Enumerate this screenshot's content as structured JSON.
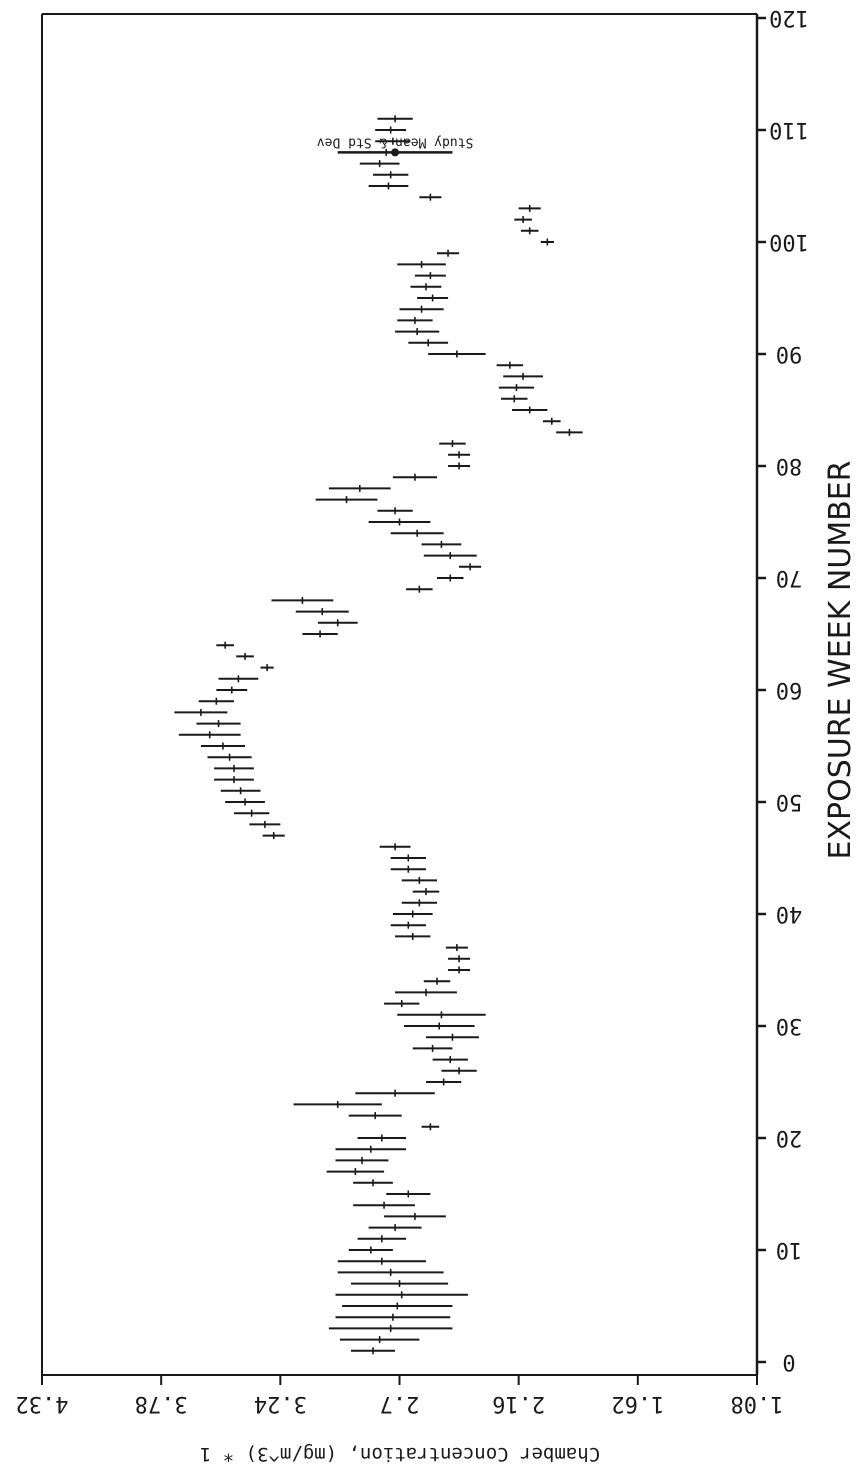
{
  "chart_data": {
    "type": "errorbar",
    "orientation": "rotated-180",
    "xlabel": "EXPOSURE WEEK NUMBER",
    "ylabel": "Chamber Concentration, (mg/m^3) * 1",
    "x_ticks": [
      "0",
      "10",
      "20",
      "30",
      "40",
      "50",
      "60",
      "70",
      "80",
      "90",
      "100",
      "110",
      "120"
    ],
    "y_ticks": [
      "1.08",
      "1.62",
      "2.16",
      "2.7",
      "3.24",
      "3.78",
      "4.32"
    ],
    "xlim": [
      0,
      120
    ],
    "ylim": [
      1.08,
      4.32
    ],
    "annotation": "Study Mean & Std Dev",
    "study_mean": {
      "x": 108,
      "mean": 2.72,
      "sd": 0.26
    },
    "series": [
      {
        "points": [
          {
            "x": 1,
            "mean": 2.82,
            "sd": 0.1
          },
          {
            "x": 2,
            "mean": 2.79,
            "sd": 0.18
          },
          {
            "x": 3,
            "mean": 2.74,
            "sd": 0.28
          },
          {
            "x": 4,
            "mean": 2.73,
            "sd": 0.26
          },
          {
            "x": 5,
            "mean": 2.71,
            "sd": 0.25
          },
          {
            "x": 6,
            "mean": 2.69,
            "sd": 0.3
          },
          {
            "x": 7,
            "mean": 2.7,
            "sd": 0.22
          },
          {
            "x": 8,
            "mean": 2.74,
            "sd": 0.24
          },
          {
            "x": 9,
            "mean": 2.78,
            "sd": 0.2
          },
          {
            "x": 10,
            "mean": 2.83,
            "sd": 0.1
          },
          {
            "x": 11,
            "mean": 2.78,
            "sd": 0.11
          },
          {
            "x": 12,
            "mean": 2.72,
            "sd": 0.12
          },
          {
            "x": 13,
            "mean": 2.63,
            "sd": 0.14
          },
          {
            "x": 14,
            "mean": 2.77,
            "sd": 0.14
          },
          {
            "x": 15,
            "mean": 2.66,
            "sd": 0.1
          },
          {
            "x": 16,
            "mean": 2.82,
            "sd": 0.09
          },
          {
            "x": 17,
            "mean": 2.9,
            "sd": 0.13
          },
          {
            "x": 18,
            "mean": 2.87,
            "sd": 0.12
          },
          {
            "x": 19,
            "mean": 2.83,
            "sd": 0.16
          },
          {
            "x": 20,
            "mean": 2.78,
            "sd": 0.11
          },
          {
            "x": 21,
            "mean": 2.56,
            "sd": 0.04
          },
          {
            "x": 22,
            "mean": 2.81,
            "sd": 0.12
          },
          {
            "x": 23,
            "mean": 2.98,
            "sd": 0.2
          },
          {
            "x": 24,
            "mean": 2.72,
            "sd": 0.18
          },
          {
            "x": 25,
            "mean": 2.5,
            "sd": 0.08
          },
          {
            "x": 26,
            "mean": 2.43,
            "sd": 0.08
          },
          {
            "x": 27,
            "mean": 2.47,
            "sd": 0.08
          },
          {
            "x": 28,
            "mean": 2.55,
            "sd": 0.09
          },
          {
            "x": 29,
            "mean": 2.46,
            "sd": 0.12
          },
          {
            "x": 30,
            "mean": 2.52,
            "sd": 0.16
          },
          {
            "x": 31,
            "mean": 2.51,
            "sd": 0.2
          },
          {
            "x": 32,
            "mean": 2.69,
            "sd": 0.08
          },
          {
            "x": 33,
            "mean": 2.58,
            "sd": 0.14
          },
          {
            "x": 34,
            "mean": 2.53,
            "sd": 0.06
          },
          {
            "x": 35,
            "mean": 2.43,
            "sd": 0.05
          },
          {
            "x": 36,
            "mean": 2.43,
            "sd": 0.05
          },
          {
            "x": 37,
            "mean": 2.44,
            "sd": 0.05
          },
          {
            "x": 38,
            "mean": 2.64,
            "sd": 0.08
          },
          {
            "x": 39,
            "mean": 2.66,
            "sd": 0.08
          },
          {
            "x": 40,
            "mean": 2.64,
            "sd": 0.09
          },
          {
            "x": 41,
            "mean": 2.61,
            "sd": 0.08
          },
          {
            "x": 42,
            "mean": 2.58,
            "sd": 0.06
          },
          {
            "x": 43,
            "mean": 2.61,
            "sd": 0.08
          },
          {
            "x": 44,
            "mean": 2.66,
            "sd": 0.08
          },
          {
            "x": 45,
            "mean": 2.66,
            "sd": 0.08
          },
          {
            "x": 46,
            "mean": 2.72,
            "sd": 0.07
          },
          {
            "x": 47,
            "mean": 3.27,
            "sd": 0.05
          },
          {
            "x": 48,
            "mean": 3.31,
            "sd": 0.07
          },
          {
            "x": 49,
            "mean": 3.37,
            "sd": 0.08
          },
          {
            "x": 50,
            "mean": 3.4,
            "sd": 0.09
          },
          {
            "x": 51,
            "mean": 3.42,
            "sd": 0.09
          },
          {
            "x": 52,
            "mean": 3.45,
            "sd": 0.09
          },
          {
            "x": 53,
            "mean": 3.45,
            "sd": 0.09
          },
          {
            "x": 54,
            "mean": 3.47,
            "sd": 0.1
          },
          {
            "x": 55,
            "mean": 3.5,
            "sd": 0.1
          },
          {
            "x": 56,
            "mean": 3.56,
            "sd": 0.14
          },
          {
            "x": 57,
            "mean": 3.52,
            "sd": 0.1
          },
          {
            "x": 58,
            "mean": 3.6,
            "sd": 0.12
          },
          {
            "x": 59,
            "mean": 3.53,
            "sd": 0.08
          },
          {
            "x": 60,
            "mean": 3.46,
            "sd": 0.07
          },
          {
            "x": 61,
            "mean": 3.43,
            "sd": 0.09
          },
          {
            "x": 62,
            "mean": 3.3,
            "sd": 0.03
          },
          {
            "x": 63,
            "mean": 3.4,
            "sd": 0.04
          },
          {
            "x": 64,
            "mean": 3.49,
            "sd": 0.04
          },
          {
            "x": 65,
            "mean": 3.06,
            "sd": 0.08
          },
          {
            "x": 66,
            "mean": 2.98,
            "sd": 0.09
          },
          {
            "x": 67,
            "mean": 3.05,
            "sd": 0.12
          },
          {
            "x": 68,
            "mean": 3.14,
            "sd": 0.14
          },
          {
            "x": 69,
            "mean": 2.61,
            "sd": 0.06
          },
          {
            "x": 70,
            "mean": 2.47,
            "sd": 0.06
          },
          {
            "x": 71,
            "mean": 2.38,
            "sd": 0.05
          },
          {
            "x": 72,
            "mean": 2.47,
            "sd": 0.12
          },
          {
            "x": 73,
            "mean": 2.51,
            "sd": 0.09
          },
          {
            "x": 74,
            "mean": 2.62,
            "sd": 0.12
          },
          {
            "x": 75,
            "mean": 2.7,
            "sd": 0.14
          },
          {
            "x": 76,
            "mean": 2.72,
            "sd": 0.08
          },
          {
            "x": 77,
            "mean": 2.94,
            "sd": 0.14
          },
          {
            "x": 78,
            "mean": 2.88,
            "sd": 0.14
          },
          {
            "x": 79,
            "mean": 2.63,
            "sd": 0.1
          },
          {
            "x": 80,
            "mean": 2.43,
            "sd": 0.05
          },
          {
            "x": 81,
            "mean": 2.43,
            "sd": 0.05
          },
          {
            "x": 82,
            "mean": 2.46,
            "sd": 0.06
          },
          {
            "x": 83,
            "mean": 1.93,
            "sd": 0.06
          },
          {
            "x": 84,
            "mean": 2.01,
            "sd": 0.04
          },
          {
            "x": 85,
            "mean": 2.11,
            "sd": 0.08
          },
          {
            "x": 86,
            "mean": 2.18,
            "sd": 0.06
          },
          {
            "x": 87,
            "mean": 2.17,
            "sd": 0.08
          },
          {
            "x": 88,
            "mean": 2.14,
            "sd": 0.09
          },
          {
            "x": 89,
            "mean": 2.2,
            "sd": 0.06
          },
          {
            "x": 90,
            "mean": 2.44,
            "sd": 0.13
          },
          {
            "x": 91,
            "mean": 2.57,
            "sd": 0.09
          },
          {
            "x": 92,
            "mean": 2.62,
            "sd": 0.1
          },
          {
            "x": 93,
            "mean": 2.63,
            "sd": 0.08
          },
          {
            "x": 94,
            "mean": 2.6,
            "sd": 0.1
          },
          {
            "x": 95,
            "mean": 2.55,
            "sd": 0.07
          },
          {
            "x": 96,
            "mean": 2.58,
            "sd": 0.07
          },
          {
            "x": 97,
            "mean": 2.56,
            "sd": 0.07
          },
          {
            "x": 98,
            "mean": 2.6,
            "sd": 0.11
          },
          {
            "x": 99,
            "mean": 2.48,
            "sd": 0.05
          },
          {
            "x": 100,
            "mean": 2.03,
            "sd": 0.03
          },
          {
            "x": 101,
            "mean": 2.11,
            "sd": 0.04
          },
          {
            "x": 102,
            "mean": 2.14,
            "sd": 0.04
          },
          {
            "x": 103,
            "mean": 2.11,
            "sd": 0.05
          },
          {
            "x": 104,
            "mean": 2.56,
            "sd": 0.05
          },
          {
            "x": 105,
            "mean": 2.75,
            "sd": 0.09
          },
          {
            "x": 106,
            "mean": 2.74,
            "sd": 0.08
          },
          {
            "x": 107,
            "mean": 2.79,
            "sd": 0.09
          },
          {
            "x": 108,
            "mean": 2.76,
            "sd": 0.09
          },
          {
            "x": 109,
            "mean": 2.73,
            "sd": 0.08
          },
          {
            "x": 110,
            "mean": 2.74,
            "sd": 0.07
          },
          {
            "x": 111,
            "mean": 2.72,
            "sd": 0.08
          }
        ]
      }
    ]
  }
}
